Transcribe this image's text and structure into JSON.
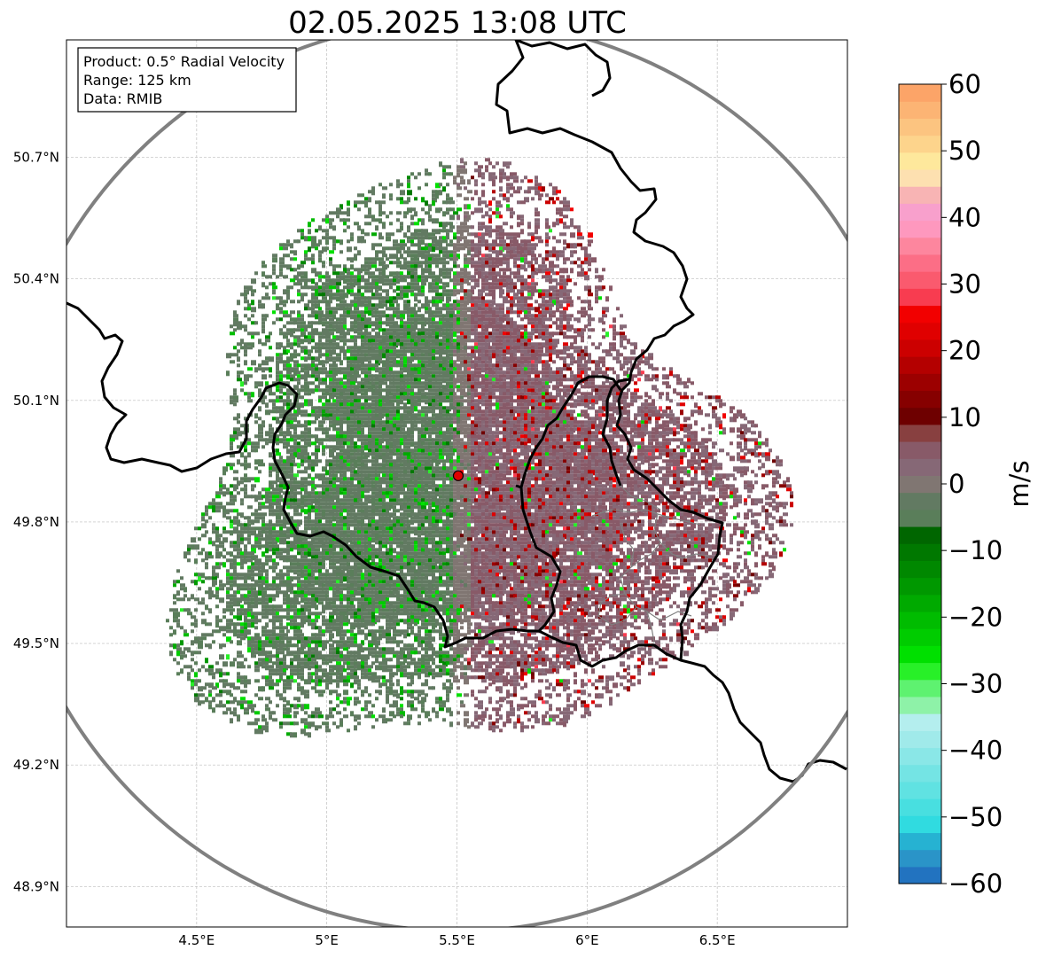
{
  "chart_data": {
    "type": "heatmap",
    "title": "02.05.2025 13:08 UTC",
    "product": "Radial Velocity",
    "elevation_deg": 0.5,
    "range_km": 125,
    "info_lines": [
      "Product: 0.5° Radial Velocity",
      "Range: 125 km",
      "Data: RMIB"
    ],
    "radar_site": {
      "lon": 5.505,
      "lat": 49.914
    },
    "xlim": [
      4.0,
      7.0
    ],
    "ylim": [
      48.8,
      50.99
    ],
    "x_ticks": [
      {
        "value": 4.5,
        "label": "4.5°E"
      },
      {
        "value": 5.0,
        "label": "5°E"
      },
      {
        "value": 5.5,
        "label": "5.5°E"
      },
      {
        "value": 6.0,
        "label": "6°E"
      },
      {
        "value": 6.5,
        "label": "6.5°E"
      }
    ],
    "y_ticks": [
      {
        "value": 50.7,
        "label": "50.7°N"
      },
      {
        "value": 50.4,
        "label": "50.4°N"
      },
      {
        "value": 50.1,
        "label": "50.1°N"
      },
      {
        "value": 49.8,
        "label": "49.8°N"
      },
      {
        "value": 49.5,
        "label": "49.5°N"
      },
      {
        "value": 49.2,
        "label": "49.2°N"
      },
      {
        "value": 48.9,
        "label": "48.9°N"
      }
    ],
    "grid": true,
    "colorbar": {
      "label": "m/s",
      "min": -60,
      "max": 60,
      "ticks": [
        {
          "value": 60,
          "label": "60"
        },
        {
          "value": 50,
          "label": "50"
        },
        {
          "value": 40,
          "label": "40"
        },
        {
          "value": 30,
          "label": "30"
        },
        {
          "value": 20,
          "label": "20"
        },
        {
          "value": 10,
          "label": "10"
        },
        {
          "value": 0,
          "label": "0"
        },
        {
          "value": -10,
          "label": "−10"
        },
        {
          "value": -20,
          "label": "−20"
        },
        {
          "value": -30,
          "label": "−30"
        },
        {
          "value": -40,
          "label": "−40"
        },
        {
          "value": -50,
          "label": "−50"
        },
        {
          "value": -60,
          "label": "−60"
        }
      ],
      "colors": [
        "#2273c0",
        "#2a94c8",
        "#26b2d2",
        "#30dbe0",
        "#48dfe0",
        "#60e2e2",
        "#74e4e4",
        "#8ae7e7",
        "#a0eaea",
        "#b4eeee",
        "#8ef2a8",
        "#5ef270",
        "#28f028",
        "#00e000",
        "#00cc00",
        "#00bc00",
        "#00aa00",
        "#009800",
        "#008800",
        "#007800",
        "#006600",
        "#5a7e5a",
        "#627a62",
        "#807672",
        "#866876",
        "#885a68",
        "#884040",
        "#6e0000",
        "#860000",
        "#9c0000",
        "#b40000",
        "#cc0000",
        "#e00000",
        "#f20000",
        "#f83c50",
        "#fa5a6e",
        "#fc6e86",
        "#fd869e",
        "#fe98be",
        "#f8a0cc",
        "#f8b4b4",
        "#fde0b0",
        "#fee89c",
        "#fdd48c",
        "#fcc480",
        "#fcb474",
        "#fca468"
      ]
    },
    "vel_field": {
      "description_values_ms": {
        "west_side": -3,
        "east_side": 4,
        "scattered_gusts_min": -30,
        "scattered_gusts_max": 28
      },
      "approx_extent_km_from_radar": 95
    }
  }
}
